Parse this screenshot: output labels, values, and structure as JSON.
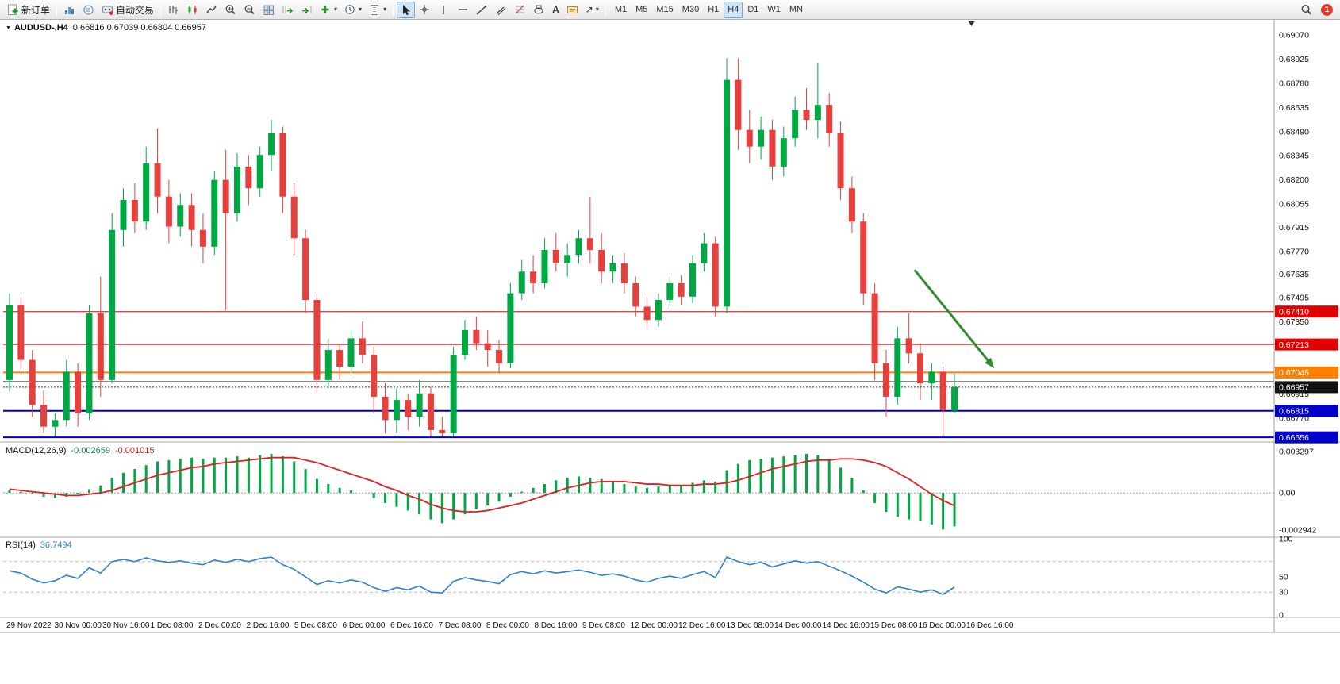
{
  "toolbar": {
    "new_order": "新订单",
    "algo_trading": "自动交易",
    "timeframes": [
      "M1",
      "M5",
      "M15",
      "M30",
      "H1",
      "H4",
      "D1",
      "W1",
      "MN"
    ],
    "active_timeframe": "H4",
    "notification_count": "1"
  },
  "chart_data": [
    {
      "type": "candlestick",
      "symbol_period": "AUDUSD-,H4",
      "ohlc_display": "0.66816 0.67039 0.66804 0.66957",
      "bull_color": "#00a843",
      "bear_color": "#e5403d",
      "y_axis": {
        "top_price": 0.69155,
        "bottom_price": 0.66633,
        "labels": [
          "0.69070",
          "0.68925",
          "0.68780",
          "0.68635",
          "0.68490",
          "0.68345",
          "0.68200",
          "0.68055",
          "0.67915",
          "0.67770",
          "0.67635",
          "0.67495",
          "0.67350",
          "0.66915",
          "0.66770"
        ]
      },
      "h_lines": [
        {
          "price": 0.6741,
          "label": "0.67410",
          "color": "#e00000",
          "width": 1,
          "tag": true
        },
        {
          "price": 0.67213,
          "label": "0.67213",
          "color": "#e00000",
          "width": 1,
          "tag": true
        },
        {
          "price": 0.67045,
          "label": "0.67045",
          "color": "#ff7f00",
          "width": 2,
          "tag": true
        },
        {
          "price": 0.6699,
          "color": "#111111",
          "width": 1,
          "tag": false
        },
        {
          "price": 0.66957,
          "label": "0.66957",
          "color": "#333333",
          "width": 1,
          "style": "dot",
          "tag": true,
          "tag_color": "#111111"
        },
        {
          "price": 0.66815,
          "label": "0.66815",
          "color": "#0000cc",
          "width": 2,
          "tag": true
        },
        {
          "price": 0.66656,
          "label": "0.66656",
          "color": "#0000cc",
          "width": 2,
          "tag": true
        }
      ],
      "candles": [
        [
          0.67,
          0.6752,
          0.6693,
          0.6745
        ],
        [
          0.6745,
          0.675,
          0.6706,
          0.6712
        ],
        [
          0.6712,
          0.6718,
          0.6678,
          0.6685
        ],
        [
          0.6685,
          0.6694,
          0.6668,
          0.6672
        ],
        [
          0.6672,
          0.668,
          0.6666,
          0.6676
        ],
        [
          0.6676,
          0.6712,
          0.6672,
          0.6705
        ],
        [
          0.6705,
          0.671,
          0.6672,
          0.668
        ],
        [
          0.668,
          0.6745,
          0.6676,
          0.674
        ],
        [
          0.674,
          0.6762,
          0.669,
          0.67
        ],
        [
          0.67,
          0.68,
          0.6698,
          0.679
        ],
        [
          0.679,
          0.6815,
          0.678,
          0.6808
        ],
        [
          0.6808,
          0.6818,
          0.6788,
          0.6795
        ],
        [
          0.6795,
          0.684,
          0.679,
          0.683
        ],
        [
          0.683,
          0.6851,
          0.68,
          0.681
        ],
        [
          0.681,
          0.682,
          0.6782,
          0.6792
        ],
        [
          0.6792,
          0.6812,
          0.6786,
          0.6805
        ],
        [
          0.6805,
          0.6812,
          0.678,
          0.679
        ],
        [
          0.679,
          0.68,
          0.677,
          0.678
        ],
        [
          0.678,
          0.6825,
          0.6775,
          0.682
        ],
        [
          0.682,
          0.6838,
          0.6742,
          0.68
        ],
        [
          0.68,
          0.6836,
          0.6795,
          0.6828
        ],
        [
          0.6828,
          0.6835,
          0.6805,
          0.6815
        ],
        [
          0.6815,
          0.684,
          0.681,
          0.6835
        ],
        [
          0.6835,
          0.6856,
          0.6825,
          0.6848
        ],
        [
          0.6848,
          0.6852,
          0.68,
          0.681
        ],
        [
          0.681,
          0.6818,
          0.6775,
          0.6785
        ],
        [
          0.6785,
          0.679,
          0.674,
          0.6748
        ],
        [
          0.6748,
          0.6752,
          0.6692,
          0.67
        ],
        [
          0.67,
          0.6725,
          0.6695,
          0.6718
        ],
        [
          0.6718,
          0.6722,
          0.67,
          0.6708
        ],
        [
          0.6708,
          0.673,
          0.6703,
          0.6725
        ],
        [
          0.6725,
          0.6735,
          0.671,
          0.6715
        ],
        [
          0.6715,
          0.672,
          0.668,
          0.669
        ],
        [
          0.669,
          0.6698,
          0.6668,
          0.6676
        ],
        [
          0.6676,
          0.6695,
          0.6668,
          0.6688
        ],
        [
          0.6688,
          0.6692,
          0.667,
          0.6678
        ],
        [
          0.6678,
          0.67,
          0.6672,
          0.6692
        ],
        [
          0.6692,
          0.6696,
          0.6666,
          0.667
        ],
        [
          0.667,
          0.6678,
          0.6666,
          0.6668
        ],
        [
          0.6668,
          0.672,
          0.6666,
          0.6715
        ],
        [
          0.6715,
          0.6736,
          0.6712,
          0.673
        ],
        [
          0.673,
          0.6738,
          0.6718,
          0.6722
        ],
        [
          0.6722,
          0.673,
          0.6708,
          0.6718
        ],
        [
          0.6718,
          0.6724,
          0.6704,
          0.671
        ],
        [
          0.671,
          0.6758,
          0.6707,
          0.6752
        ],
        [
          0.6752,
          0.6772,
          0.6748,
          0.6765
        ],
        [
          0.6765,
          0.6775,
          0.6752,
          0.6758
        ],
        [
          0.6758,
          0.6785,
          0.6755,
          0.6778
        ],
        [
          0.6778,
          0.6788,
          0.6765,
          0.677
        ],
        [
          0.677,
          0.6782,
          0.6762,
          0.6775
        ],
        [
          0.6775,
          0.679,
          0.677,
          0.6785
        ],
        [
          0.6785,
          0.681,
          0.677,
          0.6778
        ],
        [
          0.6778,
          0.6788,
          0.6758,
          0.6765
        ],
        [
          0.6765,
          0.6775,
          0.6758,
          0.677
        ],
        [
          0.677,
          0.6776,
          0.6752,
          0.6758
        ],
        [
          0.6758,
          0.6762,
          0.6738,
          0.6744
        ],
        [
          0.6744,
          0.675,
          0.673,
          0.6736
        ],
        [
          0.6736,
          0.6752,
          0.6732,
          0.6748
        ],
        [
          0.6748,
          0.6762,
          0.6744,
          0.6758
        ],
        [
          0.6758,
          0.6763,
          0.6745,
          0.675
        ],
        [
          0.675,
          0.6775,
          0.6746,
          0.677
        ],
        [
          0.677,
          0.6788,
          0.6765,
          0.6782
        ],
        [
          0.6782,
          0.6786,
          0.6738,
          0.6744
        ],
        [
          0.6744,
          0.6893,
          0.674,
          0.688
        ],
        [
          0.688,
          0.6893,
          0.6838,
          0.685
        ],
        [
          0.685,
          0.6862,
          0.683,
          0.684
        ],
        [
          0.684,
          0.6858,
          0.6832,
          0.685
        ],
        [
          0.685,
          0.6856,
          0.682,
          0.6828
        ],
        [
          0.6828,
          0.6852,
          0.6822,
          0.6845
        ],
        [
          0.6845,
          0.687,
          0.684,
          0.6862
        ],
        [
          0.6862,
          0.6875,
          0.685,
          0.6856
        ],
        [
          0.6856,
          0.689,
          0.6845,
          0.6865
        ],
        [
          0.6865,
          0.6872,
          0.684,
          0.6848
        ],
        [
          0.6848,
          0.6855,
          0.6808,
          0.6815
        ],
        [
          0.6815,
          0.6822,
          0.6788,
          0.6795
        ],
        [
          0.6795,
          0.68,
          0.6745,
          0.6752
        ],
        [
          0.6752,
          0.6758,
          0.67,
          0.671
        ],
        [
          0.671,
          0.6718,
          0.6678,
          0.669
        ],
        [
          0.669,
          0.6732,
          0.6685,
          0.6725
        ],
        [
          0.6725,
          0.674,
          0.671,
          0.6716
        ],
        [
          0.6716,
          0.6722,
          0.6688,
          0.6698
        ],
        [
          0.6698,
          0.671,
          0.6688,
          0.6705
        ],
        [
          0.6705,
          0.6708,
          0.66662,
          0.6682
        ],
        [
          0.66816,
          0.67039,
          0.66804,
          0.66957
        ]
      ],
      "x_axis_labels": [
        "29 Nov 2022",
        "30 Nov 00:00",
        "30 Nov 16:00",
        "1 Dec 08:00",
        "2 Dec 00:00",
        "2 Dec 16:00",
        "5 Dec 08:00",
        "6 Dec 00:00",
        "6 Dec 16:00",
        "7 Dec 08:00",
        "8 Dec 00:00",
        "8 Dec 16:00",
        "9 Dec 08:00",
        "12 Dec 00:00",
        "12 Dec 16:00",
        "13 Dec 08:00",
        "14 Dec 00:00",
        "14 Dec 16:00",
        "15 Dec 08:00",
        "16 Dec 00:00",
        "16 Dec 16:00"
      ],
      "arrow": {
        "color": "#2e8b2e",
        "from": {
          "index": 79.5,
          "price": 0.6766
        },
        "to": {
          "index": 86.5,
          "price": 0.6707
        }
      },
      "shift_marker_index": 84.5
    },
    {
      "type": "bar",
      "name": "MACD(12,26,9)",
      "main_value": "-0.002659",
      "signal_value": "-0.001015",
      "histogram_color": "#00a843",
      "signal_color": "#e02020",
      "y_axis": {
        "max": 0.00385,
        "min": -0.00345,
        "labels": [
          {
            "text": "0.003297",
            "value": 0.003297
          },
          {
            "text": "0.00",
            "value": 0
          },
          {
            "text": "-0.002942",
            "value": -0.002942
          }
        ]
      },
      "histogram": [
        0.0002,
        0.0001,
        -0.0001,
        -0.0003,
        -0.0004,
        -0.0003,
        -0.0001,
        0.0003,
        0.0006,
        0.0012,
        0.0016,
        0.0019,
        0.0022,
        0.0025,
        0.0026,
        0.0027,
        0.0028,
        0.0027,
        0.0028,
        0.0028,
        0.0029,
        0.0028,
        0.003,
        0.0031,
        0.0029,
        0.0025,
        0.0019,
        0.0011,
        0.0007,
        0.0004,
        0.0002,
        0.0,
        -0.0004,
        -0.0008,
        -0.0011,
        -0.0014,
        -0.0017,
        -0.0021,
        -0.0024,
        -0.0021,
        -0.0017,
        -0.0013,
        -0.001,
        -0.0007,
        -0.0003,
        0.0001,
        0.0004,
        0.0007,
        0.001,
        0.0012,
        0.0013,
        0.0012,
        0.0011,
        0.0009,
        0.0007,
        0.0005,
        0.0004,
        0.0005,
        0.0006,
        0.0006,
        0.0008,
        0.001,
        0.0009,
        0.0018,
        0.0023,
        0.0026,
        0.0027,
        0.0028,
        0.0029,
        0.003,
        0.0031,
        0.003,
        0.0026,
        0.002,
        0.0012,
        0.0002,
        -0.0008,
        -0.0015,
        -0.0019,
        -0.0021,
        -0.0022,
        -0.0025,
        -0.0029,
        -0.002659
      ],
      "signal": [
        0.0003,
        0.0002,
        0.0001,
        0.0,
        -0.0001,
        -0.0002,
        -0.0002,
        -0.0001,
        0.0,
        0.0002,
        0.0005,
        0.0008,
        0.0011,
        0.0014,
        0.0016,
        0.0018,
        0.002,
        0.0021,
        0.0023,
        0.0024,
        0.0025,
        0.0026,
        0.0027,
        0.0028,
        0.0028,
        0.0028,
        0.0026,
        0.0024,
        0.0021,
        0.0018,
        0.0015,
        0.0012,
        0.0009,
        0.0005,
        0.0002,
        -0.0002,
        -0.0005,
        -0.0009,
        -0.0012,
        -0.0014,
        -0.0015,
        -0.0015,
        -0.0014,
        -0.0012,
        -0.001,
        -0.0008,
        -0.0005,
        -0.0002,
        0.0001,
        0.0004,
        0.0006,
        0.0008,
        0.0009,
        0.0009,
        0.0009,
        0.0008,
        0.0007,
        0.0007,
        0.0006,
        0.0006,
        0.0006,
        0.0007,
        0.0007,
        0.0008,
        0.001,
        0.0013,
        0.0016,
        0.0019,
        0.0021,
        0.0023,
        0.0025,
        0.0026,
        0.0026,
        0.0027,
        0.0027,
        0.0026,
        0.0024,
        0.0021,
        0.0016,
        0.0011,
        0.0005,
        -0.0001,
        -0.0006,
        -0.001015
      ]
    },
    {
      "type": "line",
      "name": "RSI(14)",
      "value": "36.7494",
      "color": "#2f80d0",
      "levels": [
        70,
        30
      ],
      "y_axis": {
        "max": 100,
        "min": 0,
        "labels": [
          {
            "text": "100",
            "value": 100
          },
          {
            "text": "50",
            "value": 50
          },
          {
            "text": "30",
            "value": 30
          },
          {
            "text": "0",
            "value": 0
          }
        ]
      },
      "values": [
        58,
        55,
        47,
        42,
        45,
        52,
        48,
        62,
        55,
        70,
        73,
        70,
        75,
        71,
        69,
        71,
        68,
        66,
        72,
        69,
        73,
        70,
        74,
        76,
        66,
        60,
        50,
        40,
        45,
        42,
        46,
        43,
        36,
        31,
        36,
        33,
        38,
        30,
        29,
        44,
        49,
        46,
        44,
        41,
        53,
        57,
        54,
        58,
        55,
        57,
        59,
        56,
        52,
        54,
        51,
        46,
        43,
        48,
        51,
        48,
        53,
        57,
        49,
        76,
        70,
        66,
        69,
        63,
        67,
        71,
        68,
        70,
        64,
        58,
        51,
        43,
        34,
        29,
        37,
        34,
        30,
        33,
        27,
        36.7
      ]
    }
  ]
}
